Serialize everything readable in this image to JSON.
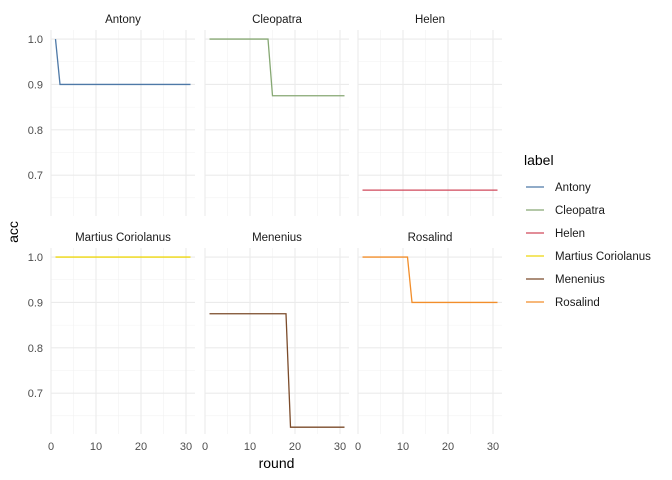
{
  "chart_data": {
    "type": "line",
    "layout": "facet_wrap",
    "xlabel": "round",
    "ylabel": "acc",
    "xlim": [
      0,
      32
    ],
    "ylim": [
      0.61,
      1.02
    ],
    "x_ticks": [
      0,
      10,
      20,
      30
    ],
    "y_ticks": [
      1.0,
      0.9,
      0.8,
      0.7
    ],
    "y_tick_labels": [
      "1.0",
      "0.9",
      "0.8",
      "0.7"
    ],
    "grid": true,
    "legend": {
      "title": "label",
      "placement": "right"
    },
    "series": [
      {
        "name": "Antony",
        "color": "#4E79A7",
        "x": [
          1,
          2,
          31
        ],
        "y": [
          1.0,
          0.9,
          0.9
        ]
      },
      {
        "name": "Cleopatra",
        "color": "#86A873",
        "x": [
          1,
          14,
          15,
          31
        ],
        "y": [
          1.0,
          1.0,
          0.875,
          0.875
        ]
      },
      {
        "name": "Helen",
        "color": "#D1495B",
        "x": [
          1,
          31
        ],
        "y": [
          0.667,
          0.667
        ]
      },
      {
        "name": "Martius Coriolanus",
        "color": "#EDD60E",
        "x": [
          1,
          31
        ],
        "y": [
          1.0,
          1.0
        ]
      },
      {
        "name": "Menenius",
        "color": "#7B4B2A",
        "x": [
          1,
          18,
          19,
          31
        ],
        "y": [
          0.875,
          0.875,
          0.625,
          0.625
        ]
      },
      {
        "name": "Rosalind",
        "color": "#F28E2B",
        "x": [
          1,
          11,
          12,
          31
        ],
        "y": [
          1.0,
          1.0,
          0.9,
          0.9
        ]
      }
    ]
  }
}
